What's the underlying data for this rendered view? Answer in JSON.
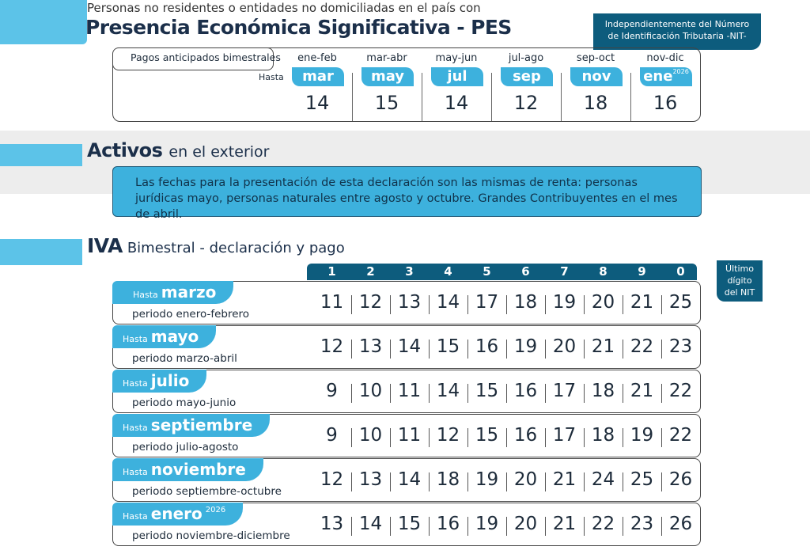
{
  "pes": {
    "intro": "Personas no residentes o entidades no domiciliadas en el país con",
    "title": "Presencia Económica Significativa - PES",
    "badge": [
      "Independientemente del Número",
      "de Identificación Tributaria -NIT-"
    ],
    "table": {
      "label": "Pagos anticipados bimestrales",
      "until": "Hasta",
      "columns": [
        {
          "period": "ene-feb",
          "month": "mar",
          "day": 14
        },
        {
          "period": "mar-abr",
          "month": "may",
          "day": 15
        },
        {
          "period": "may-jun",
          "month": "jul",
          "day": 14
        },
        {
          "period": "jul-ago",
          "month": "sep",
          "day": 12
        },
        {
          "period": "sep-oct",
          "month": "nov",
          "day": 18
        },
        {
          "period": "nov-dic",
          "month": "ene",
          "year": 2026,
          "day": 16
        }
      ]
    }
  },
  "activos": {
    "title": "Activos",
    "subtitle": "en el exterior",
    "text": "Las fechas para la presentación de esta declaración son las mismas de renta: personas jurídicas mayo, personas naturales entre agosto y octubre. Grandes Contribuyentes en el mes de abril."
  },
  "iva": {
    "title": "IVA",
    "subtitle": "Bimestral - declaración y pago",
    "digits": [
      1,
      2,
      3,
      4,
      5,
      6,
      7,
      8,
      9,
      0
    ],
    "digit_note": [
      "Último",
      "dígito",
      "del NIT"
    ],
    "rows": [
      {
        "until": "Hasta",
        "month": "marzo",
        "period": "periodo enero-febrero",
        "days": [
          11,
          12,
          13,
          14,
          17,
          18,
          19,
          20,
          21,
          25
        ]
      },
      {
        "until": "Hasta",
        "month": "mayo",
        "period": "periodo marzo-abril",
        "days": [
          12,
          13,
          14,
          15,
          16,
          19,
          20,
          21,
          22,
          23
        ]
      },
      {
        "until": "Hasta",
        "month": "julio",
        "period": "periodo mayo-junio",
        "days": [
          9,
          10,
          11,
          14,
          15,
          16,
          17,
          18,
          21,
          22
        ]
      },
      {
        "until": "Hasta",
        "month": "septiembre",
        "period": "periodo julio-agosto",
        "days": [
          9,
          10,
          11,
          12,
          15,
          16,
          17,
          18,
          19,
          22
        ]
      },
      {
        "until": "Hasta",
        "month": "noviembre",
        "period": "periodo septiembre-octubre",
        "days": [
          12,
          13,
          14,
          18,
          19,
          20,
          21,
          24,
          25,
          26
        ]
      },
      {
        "until": "Hasta",
        "month": "enero",
        "year": 2026,
        "period": "periodo noviembre-diciembre",
        "days": [
          13,
          14,
          15,
          16,
          19,
          20,
          21,
          22,
          23,
          26
        ]
      }
    ]
  }
}
